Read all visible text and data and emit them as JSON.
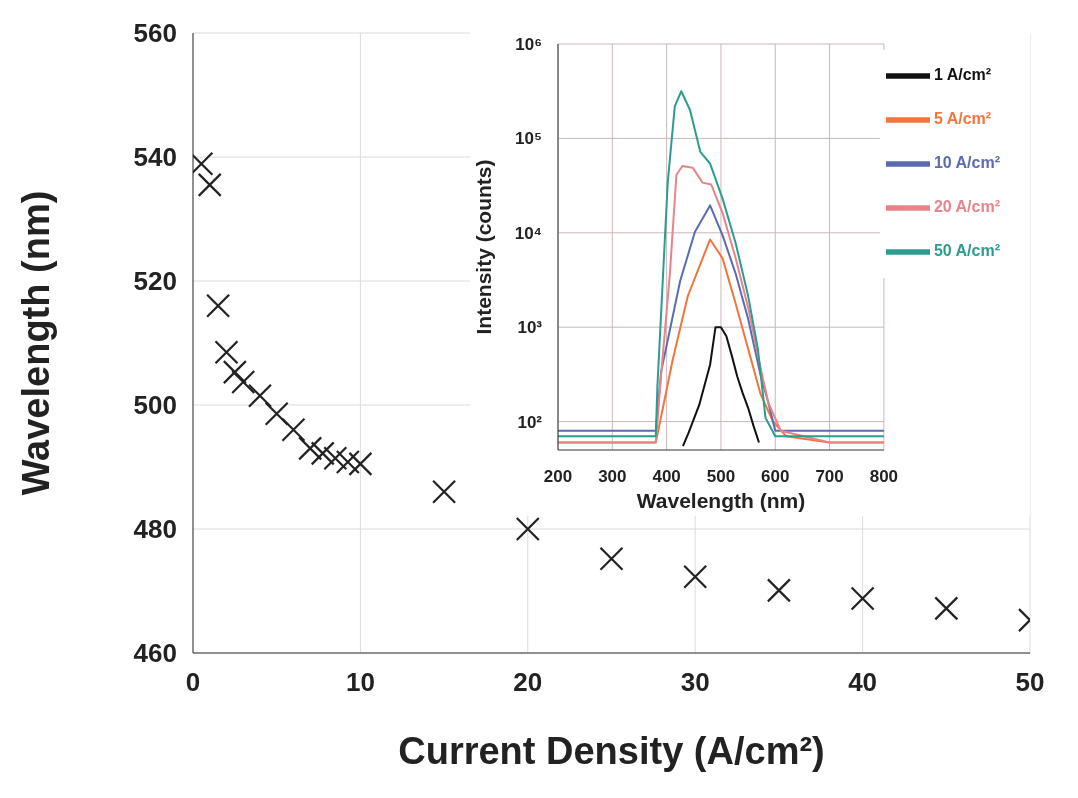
{
  "chart_data": [
    {
      "type": "scatter",
      "xlabel": "Current Density (A/cm²)",
      "ylabel": "Wavelength (nm)",
      "x": [
        0.5,
        1,
        1.5,
        2,
        2.5,
        3,
        4,
        5,
        6,
        7,
        7.75,
        8.5,
        9.25,
        10,
        15,
        20,
        25,
        30,
        35,
        40,
        45,
        50
      ],
      "values": [
        538.9,
        535.5,
        516,
        508.5,
        505.3,
        503.7,
        501.5,
        498.6,
        496,
        493,
        492.2,
        491.4,
        490.8,
        490.5,
        486,
        480,
        475.2,
        472.3,
        470.1,
        468.8,
        467.2,
        465.3
      ],
      "color": "#222222",
      "marker": "cross",
      "xlim": [
        0,
        50
      ],
      "xticks": [
        0,
        10,
        20,
        30,
        40,
        50
      ],
      "ylim": [
        460,
        560
      ],
      "yticks": [
        460,
        480,
        500,
        520,
        540,
        560
      ],
      "grid": true
    },
    {
      "type": "line",
      "xlabel": "Wavelength (nm)",
      "ylabel": "Intensity (counts)",
      "log": "y",
      "xlim": [
        200,
        800
      ],
      "xticks": [
        200,
        300,
        400,
        500,
        600,
        700,
        800
      ],
      "ylim": [
        50,
        1000000
      ],
      "yticks": [
        {
          "value": 100,
          "label": "10²"
        },
        {
          "value": 1000,
          "label": "10³"
        },
        {
          "value": 10000,
          "label": "10⁴"
        },
        {
          "value": 100000,
          "label": "10⁵"
        },
        {
          "value": 1000000,
          "label": "10⁶"
        }
      ],
      "grid": true,
      "legend": "top right",
      "series": [
        {
          "name": "1 A/cm²",
          "color": "#111111",
          "x": [
            430,
            440,
            460,
            480,
            490,
            500,
            510,
            520,
            530,
            540,
            550,
            560,
            570
          ],
          "values": [
            55,
            75,
            150,
            400,
            1000,
            1000,
            800,
            500,
            300,
            200,
            140,
            90,
            60
          ]
        },
        {
          "name": "5 A/cm²",
          "color": "#f4743b",
          "x": [
            200,
            250,
            300,
            350,
            380,
            388,
            411,
            439,
            480,
            503,
            527,
            550,
            573,
            596,
            620,
            700,
            800
          ],
          "values": [
            60,
            60,
            60,
            60,
            60,
            100,
            447,
            2140,
            8500,
            5360,
            1780,
            590,
            195,
            100,
            70,
            60,
            60
          ]
        },
        {
          "name": "10 A/cm²",
          "color": "#5b6bb0",
          "x": [
            200,
            250,
            300,
            350,
            380,
            390,
            425,
            452,
            480,
            503,
            527,
            550,
            573,
            587,
            600,
            700,
            800
          ],
          "values": [
            80,
            80,
            80,
            80,
            80,
            340,
            3100,
            10200,
            19500,
            9400,
            3700,
            1230,
            310,
            160,
            80,
            80,
            80
          ]
        },
        {
          "name": "20 A/cm²",
          "color": "#e8838a",
          "x": [
            200,
            250,
            300,
            350,
            380,
            388,
            406,
            418,
            429,
            448,
            466,
            482,
            503,
            527,
            550,
            573,
            587,
            610,
            700,
            800
          ],
          "values": [
            60,
            60,
            60,
            60,
            60,
            235,
            3700,
            41000,
            51000,
            49000,
            34000,
            32500,
            16200,
            5400,
            1620,
            370,
            160,
            80,
            60,
            60
          ]
        },
        {
          "name": "50 A/cm²",
          "color": "#2a9d8f",
          "x": [
            200,
            250,
            300,
            350,
            380,
            383,
            402,
            415,
            427,
            443,
            462,
            480,
            503,
            527,
            550,
            568,
            582,
            600,
            700,
            800
          ],
          "values": [
            70,
            70,
            70,
            70,
            70,
            235,
            34000,
            218000,
            316000,
            200000,
            72000,
            54000,
            23000,
            7800,
            2150,
            590,
            110,
            70,
            70,
            70
          ]
        }
      ]
    }
  ]
}
